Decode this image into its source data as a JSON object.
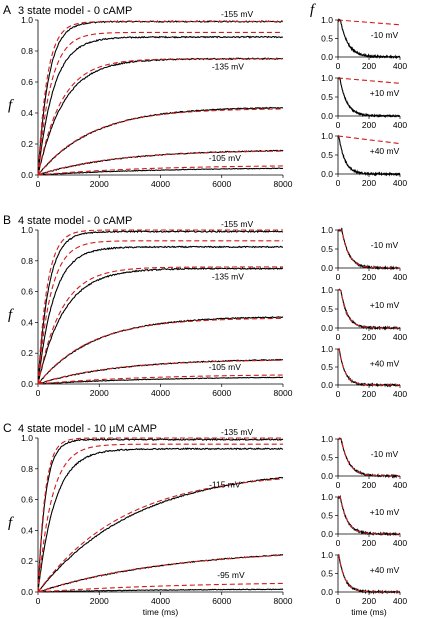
{
  "figure": {
    "xlabel": "time (ms)",
    "ylabel": "f",
    "colors": {
      "data": "#000000",
      "fit": "#d01c1c"
    }
  },
  "chart_data": [
    {
      "type": "line",
      "panel": "A",
      "title": "3 state model - 0 cAMP",
      "xlim": [
        0,
        8000
      ],
      "ylim": [
        0,
        1.0
      ],
      "xticks": [
        "0",
        "2000",
        "4000",
        "6000",
        "8000"
      ],
      "yticks": [
        "0.0",
        "0.2",
        "0.4",
        "0.6",
        "0.8",
        "1.0"
      ],
      "ylabel": "f",
      "annotations": [
        {
          "text": "-155 mV",
          "x": 6500,
          "y": 1.02
        },
        {
          "text": "-135 mV",
          "x": 6200,
          "y": 0.68
        },
        {
          "text": "-105 mV",
          "x": 6100,
          "y": 0.09
        }
      ],
      "series": [
        {
          "style": "data",
          "plateau": 0.99,
          "tau": 350,
          "noise": 0.004
        },
        {
          "style": "fit",
          "plateau": 0.99,
          "tau": 300
        },
        {
          "style": "data",
          "plateau": 0.89,
          "tau": 520,
          "noise": 0.004
        },
        {
          "style": "fit",
          "plateau": 0.92,
          "tau": 420
        },
        {
          "style": "data",
          "plateau": 0.75,
          "tau": 850,
          "noise": 0.004
        },
        {
          "style": "fit",
          "plateau": 0.75,
          "tau": 760
        },
        {
          "style": "data",
          "plateau": 0.44,
          "tau": 1800,
          "noise": 0.003
        },
        {
          "style": "fit",
          "plateau": 0.43,
          "tau": 1700
        },
        {
          "style": "data",
          "plateau": 0.165,
          "tau": 2600,
          "noise": 0.003
        },
        {
          "style": "fit",
          "plateau": 0.16,
          "tau": 2400
        },
        {
          "style": "data",
          "plateau": 0.05,
          "tau": 4000,
          "noise": 0.002
        },
        {
          "style": "fit",
          "plateau": 0.065,
          "tau": 3500
        }
      ]
    },
    {
      "type": "line",
      "panel": "B",
      "title": "4 state model - 0 cAMP",
      "xlim": [
        0,
        8000
      ],
      "ylim": [
        0,
        1.0
      ],
      "xticks": [
        "0",
        "2000",
        "4000",
        "6000",
        "8000"
      ],
      "yticks": [
        "0.0",
        "0.2",
        "0.4",
        "0.6",
        "0.8",
        "1.0"
      ],
      "ylabel": "f",
      "annotations": [
        {
          "text": "-155 mV",
          "x": 6500,
          "y": 1.02
        },
        {
          "text": "-135 mV",
          "x": 6200,
          "y": 0.68
        },
        {
          "text": "-105 mV",
          "x": 6100,
          "y": 0.09
        }
      ],
      "series": [
        {
          "style": "data",
          "plateau": 0.99,
          "tau": 350,
          "noise": 0.004
        },
        {
          "style": "fit",
          "plateau": 1.0,
          "tau": 300
        },
        {
          "style": "data",
          "plateau": 0.89,
          "tau": 520,
          "noise": 0.004
        },
        {
          "style": "fit",
          "plateau": 0.93,
          "tau": 420
        },
        {
          "style": "data",
          "plateau": 0.75,
          "tau": 850,
          "noise": 0.004
        },
        {
          "style": "fit",
          "plateau": 0.76,
          "tau": 760
        },
        {
          "style": "data",
          "plateau": 0.44,
          "tau": 1800,
          "noise": 0.003
        },
        {
          "style": "fit",
          "plateau": 0.43,
          "tau": 1700
        },
        {
          "style": "data",
          "plateau": 0.165,
          "tau": 2600,
          "noise": 0.003
        },
        {
          "style": "fit",
          "plateau": 0.16,
          "tau": 2400
        },
        {
          "style": "data",
          "plateau": 0.05,
          "tau": 4000,
          "noise": 0.002
        },
        {
          "style": "fit",
          "plateau": 0.065,
          "tau": 3500
        }
      ]
    },
    {
      "type": "line",
      "panel": "C",
      "title": "4 state model - 10 µM cAMP",
      "xlim": [
        0,
        8000
      ],
      "ylim": [
        0,
        1.0
      ],
      "xticks": [
        "0",
        "2000",
        "4000",
        "6000",
        "8000"
      ],
      "yticks": [
        "0.0",
        "0.2",
        "0.4",
        "0.6",
        "0.8",
        "1.0"
      ],
      "ylabel": "f",
      "annotations": [
        {
          "text": "-135 mV",
          "x": 6500,
          "y": 1.02
        },
        {
          "text": "-115 mV",
          "x": 6100,
          "y": 0.68
        },
        {
          "text": "-95 mV",
          "x": 6300,
          "y": 0.09
        }
      ],
      "series": [
        {
          "style": "data",
          "plateau": 0.99,
          "tau": 250,
          "noise": 0.004
        },
        {
          "style": "fit",
          "plateau": 1.0,
          "tau": 230
        },
        {
          "style": "data",
          "plateau": 0.93,
          "tau": 560,
          "noise": 0.004
        },
        {
          "style": "fit",
          "plateau": 0.96,
          "tau": 450
        },
        {
          "style": "data",
          "plateau": 0.81,
          "tau": 3200,
          "noise": 0.003
        },
        {
          "style": "fit",
          "plateau": 0.78,
          "tau": 2800
        },
        {
          "style": "data",
          "plateau": 0.29,
          "tau": 4500,
          "noise": 0.003
        },
        {
          "style": "fit",
          "plateau": 0.28,
          "tau": 4200
        },
        {
          "style": "data",
          "plateau": 0.02,
          "tau": 4000,
          "noise": 0.002
        },
        {
          "style": "fit",
          "plateau": 0.07,
          "tau": 5000
        }
      ]
    },
    {
      "type": "line",
      "panel": "A",
      "xlim": [
        0,
        400
      ],
      "ylim": [
        0,
        1.0
      ],
      "xticks": [
        "0",
        "200",
        "400"
      ],
      "yticks": [
        "0.0",
        "0.5",
        "1.0"
      ],
      "ylabel": "f",
      "label": "-10 mV",
      "series": [
        {
          "style": "data",
          "tau": 50,
          "delay": 15,
          "noise": 0.02
        },
        {
          "style": "fit-linear",
          "start": 1.0,
          "end": 0.87
        }
      ]
    },
    {
      "type": "line",
      "panel": "A",
      "xlim": [
        0,
        400
      ],
      "ylim": [
        0,
        1.0
      ],
      "xticks": [
        "0",
        "200",
        "400"
      ],
      "yticks": [
        "0.0",
        "0.5",
        "1.0"
      ],
      "label": "+10 mV",
      "series": [
        {
          "style": "data",
          "tau": 45,
          "delay": 12,
          "noise": 0.02
        },
        {
          "style": "fit-linear",
          "start": 1.0,
          "end": 0.86
        }
      ]
    },
    {
      "type": "line",
      "panel": "A",
      "xlim": [
        0,
        400
      ],
      "ylim": [
        0,
        1.0
      ],
      "xticks": [
        "0",
        "200",
        "400"
      ],
      "yticks": [
        "0.0",
        "0.5",
        "1.0"
      ],
      "label": "+40 mV",
      "series": [
        {
          "style": "data",
          "tau": 40,
          "delay": 5,
          "noise": 0.02
        },
        {
          "style": "fit-linear",
          "start": 1.0,
          "end": 0.8
        }
      ]
    },
    {
      "type": "line",
      "panel": "B",
      "xlim": [
        0,
        400
      ],
      "ylim": [
        0,
        1.0
      ],
      "xticks": [
        "0",
        "200",
        "400"
      ],
      "yticks": [
        "0.0",
        "0.5",
        "1.0"
      ],
      "label": "-10 mV",
      "series": [
        {
          "style": "data",
          "tau": 45,
          "delay": 25,
          "noise": 0.02
        },
        {
          "style": "fit",
          "tau": 45,
          "delay": 25
        }
      ]
    },
    {
      "type": "line",
      "panel": "B",
      "xlim": [
        0,
        400
      ],
      "ylim": [
        0,
        1.0
      ],
      "xticks": [
        "0",
        "200",
        "400"
      ],
      "yticks": [
        "0.0",
        "0.5",
        "1.0"
      ],
      "label": "+10 mV",
      "series": [
        {
          "style": "data",
          "tau": 42,
          "delay": 18,
          "noise": 0.02
        },
        {
          "style": "fit",
          "tau": 42,
          "delay": 18
        }
      ]
    },
    {
      "type": "line",
      "panel": "B",
      "xlim": [
        0,
        400
      ],
      "ylim": [
        0,
        1.0
      ],
      "xticks": [
        "0",
        "200",
        "400"
      ],
      "yticks": [
        "0.0",
        "0.5",
        "1.0"
      ],
      "label": "+40 mV",
      "series": [
        {
          "style": "data",
          "tau": 38,
          "delay": 8,
          "noise": 0.02
        },
        {
          "style": "fit",
          "tau": 38,
          "delay": 8
        }
      ]
    },
    {
      "type": "line",
      "panel": "C",
      "xlim": [
        0,
        400
      ],
      "ylim": [
        0,
        1.0
      ],
      "xticks": [
        "0",
        "200",
        "400"
      ],
      "yticks": [
        "0.0",
        "0.5",
        "1.0"
      ],
      "label": "-10 mV",
      "series": [
        {
          "style": "data",
          "tau": 50,
          "delay": 20,
          "noise": 0.02
        },
        {
          "style": "fit",
          "tau": 50,
          "delay": 20
        }
      ]
    },
    {
      "type": "line",
      "panel": "C",
      "xlim": [
        0,
        400
      ],
      "ylim": [
        0,
        1.0
      ],
      "xticks": [
        "0",
        "200",
        "400"
      ],
      "yticks": [
        "0.0",
        "0.5",
        "1.0"
      ],
      "label": "+10 mV",
      "series": [
        {
          "style": "data",
          "tau": 45,
          "delay": 15,
          "noise": 0.02
        },
        {
          "style": "fit",
          "tau": 45,
          "delay": 15
        }
      ]
    },
    {
      "type": "line",
      "panel": "C",
      "xlim": [
        0,
        400
      ],
      "ylim": [
        0,
        1.0
      ],
      "xticks": [
        "0",
        "200",
        "400"
      ],
      "yticks": [
        "0.0",
        "0.5",
        "1.0"
      ],
      "label": "+40 mV",
      "series": [
        {
          "style": "data",
          "tau": 40,
          "delay": 5,
          "noise": 0.02
        },
        {
          "style": "fit",
          "tau": 40,
          "delay": 5
        }
      ]
    }
  ]
}
